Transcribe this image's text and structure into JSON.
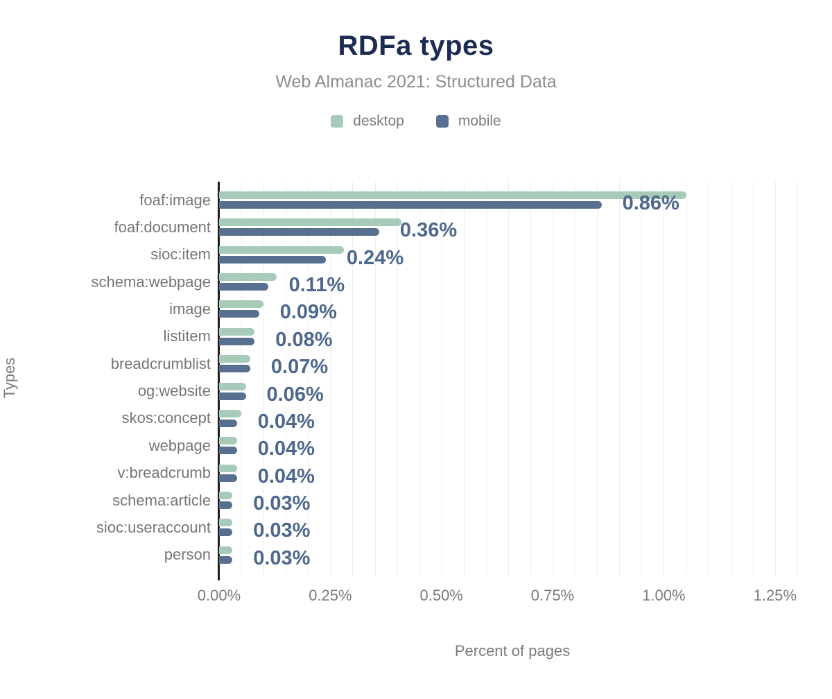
{
  "chart_data": {
    "type": "bar",
    "orientation": "horizontal",
    "title": "RDFa types",
    "subtitle": "Web Almanac 2021: Structured Data",
    "xlabel": "Percent of pages",
    "ylabel": "Types",
    "xlim": [
      0,
      1.25
    ],
    "x_ticks": [
      "0.00%",
      "0.25%",
      "0.50%",
      "0.75%",
      "1.00%",
      "1.25%"
    ],
    "x_tick_values": [
      0,
      0.25,
      0.5,
      0.75,
      1.0,
      1.25
    ],
    "grid": "faint vertical minor gridlines every 0.05%",
    "legend_position": "top-center",
    "categories": [
      "foaf:image",
      "foaf:document",
      "sioc:item",
      "schema:webpage",
      "image",
      "listitem",
      "breadcrumblist",
      "og:website",
      "skos:concept",
      "webpage",
      "v:breadcrumb",
      "schema:article",
      "sioc:useraccount",
      "person"
    ],
    "series": [
      {
        "name": "desktop",
        "color": "#a7cbb8",
        "values": [
          1.05,
          0.41,
          0.28,
          0.13,
          0.1,
          0.08,
          0.07,
          0.06,
          0.05,
          0.04,
          0.04,
          0.03,
          0.03,
          0.03
        ]
      },
      {
        "name": "mobile",
        "color": "#586f8f",
        "values": [
          0.86,
          0.36,
          0.24,
          0.11,
          0.09,
          0.08,
          0.07,
          0.06,
          0.04,
          0.04,
          0.04,
          0.03,
          0.03,
          0.03
        ]
      }
    ],
    "value_labels": {
      "series": "mobile",
      "color": "#4d688c",
      "labels": [
        "0.86%",
        "0.36%",
        "0.24%",
        "0.11%",
        "0.09%",
        "0.08%",
        "0.07%",
        "0.06%",
        "0.04%",
        "0.04%",
        "0.04%",
        "0.03%",
        "0.03%",
        "0.03%"
      ]
    },
    "axis_color": "#1d1d1d",
    "title_color": "#1c2b52",
    "text_color": "#7b7b7b"
  }
}
